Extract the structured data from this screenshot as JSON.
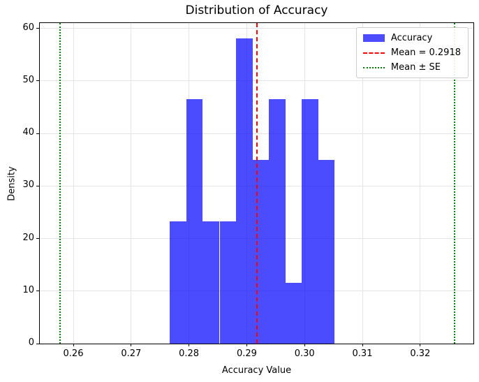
{
  "figure": {
    "title": "Distribution of Accuracy",
    "xlabel": "Accuracy Value",
    "ylabel": "Density"
  },
  "chart_data": {
    "type": "bar",
    "subtype": "histogram",
    "title": "Distribution of Accuracy",
    "xlabel": "Accuracy Value",
    "ylabel": "Density",
    "bin_edges": [
      0.2767,
      0.2796,
      0.2824,
      0.2853,
      0.2881,
      0.291,
      0.2938,
      0.2967,
      0.2995,
      0.3024,
      0.3052
    ],
    "densities": [
      23.2,
      46.5,
      23.2,
      23.2,
      58.1,
      34.9,
      46.5,
      11.6,
      46.5,
      34.9
    ],
    "mean": 0.2918,
    "se_band": [
      0.2577,
      0.3259
    ],
    "xlim": [
      0.2542,
      0.3292
    ],
    "ylim": [
      0,
      61
    ],
    "x_tick_values": [
      0.26,
      0.27,
      0.28,
      0.29,
      0.3,
      0.31,
      0.32
    ],
    "x_tick_labels": [
      "0.26",
      "0.27",
      "0.28",
      "0.29",
      "0.30",
      "0.31",
      "0.32"
    ],
    "y_tick_values": [
      0,
      10,
      20,
      30,
      40,
      50,
      60
    ],
    "y_tick_labels": [
      "0",
      "10",
      "20",
      "30",
      "40",
      "50",
      "60"
    ],
    "grid": true,
    "legend_position": "upper right"
  },
  "legend": {
    "items": [
      {
        "label": "Accuracy",
        "swatch": "patch"
      },
      {
        "label": "Mean = 0.2918",
        "swatch": "dashed-line"
      },
      {
        "label": "Mean ± SE",
        "swatch": "dotted-line"
      }
    ]
  },
  "colors": {
    "bar_fill": "rgba(0,0,255,0.7)",
    "bar_hex": "#4d4dff",
    "mean_line": "#ff0000",
    "se_line": "#008000",
    "grid": "#e4e4e4",
    "spine": "#000000",
    "legend_border": "#cccccc"
  }
}
